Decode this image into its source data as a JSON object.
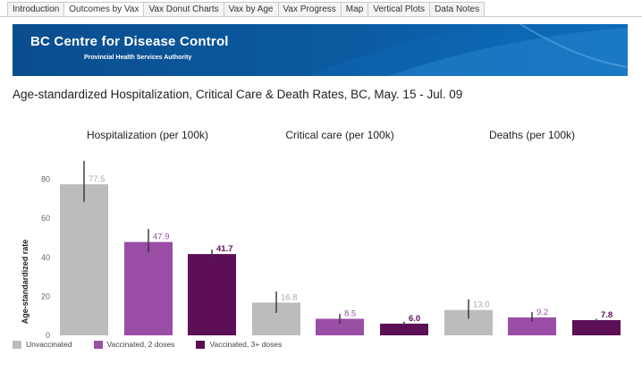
{
  "tabs": [
    {
      "label": "Introduction",
      "active": false
    },
    {
      "label": "Outcomes by Vax",
      "active": true
    },
    {
      "label": "Vax Donut Charts",
      "active": false
    },
    {
      "label": "Vax by Age",
      "active": false
    },
    {
      "label": "Vax Progress",
      "active": false
    },
    {
      "label": "Map",
      "active": false
    },
    {
      "label": "Vertical Plots",
      "active": false
    },
    {
      "label": "Data Notes",
      "active": false
    }
  ],
  "banner": {
    "title": "BC Centre for Disease Control",
    "subtitle": "Provincial Health Services Authority"
  },
  "headline": "Age-standardized Hospitalization, Critical Care  & Death Rates, BC, May. 15 - Jul. 09",
  "colors": {
    "unvaccinated": "#bcbcbc",
    "two_doses": "#9a4ea6",
    "three_doses": "#5c0f57",
    "label_unvaccinated": "#aaaaaa",
    "label_two_doses": "#9a4ea6",
    "label_three_doses": "#5c0f57",
    "banner": "#0b5aa0"
  },
  "chart_data": {
    "type": "bar",
    "ylabel": "Age-standardized rate",
    "ylim": [
      0,
      90
    ],
    "yticks": [
      0,
      20,
      40,
      60,
      80
    ],
    "panels": [
      {
        "title": "Hospitalization (per 100k)",
        "bars": [
          {
            "series": "Unvaccinated",
            "value": 77.5,
            "label": "77.5",
            "err_low": 68.5,
            "err_high": 89.5
          },
          {
            "series": "Vaccinated, 2 doses",
            "value": 47.9,
            "label": "47.9",
            "err_low": 42.5,
            "err_high": 54.5
          },
          {
            "series": "Vaccinated, 3+ doses",
            "value": 41.7,
            "label": "41.7",
            "err_low": 39.5,
            "err_high": 44.0
          }
        ]
      },
      {
        "title": "Critical care (per 100k)",
        "bars": [
          {
            "series": "Unvaccinated",
            "value": 16.8,
            "label": "16.8",
            "err_low": 11.5,
            "err_high": 22.5
          },
          {
            "series": "Vaccinated, 2 doses",
            "value": 8.5,
            "label": "8.5",
            "err_low": 6.0,
            "err_high": 11.0
          },
          {
            "series": "Vaccinated, 3+ doses",
            "value": 6.0,
            "label": "6.0",
            "err_low": 5.0,
            "err_high": 7.0
          }
        ]
      },
      {
        "title": "Deaths (per 100k)",
        "bars": [
          {
            "series": "Unvaccinated",
            "value": 13.0,
            "label": "13.0",
            "err_low": 8.5,
            "err_high": 18.5
          },
          {
            "series": "Vaccinated, 2 doses",
            "value": 9.2,
            "label": "9.2",
            "err_low": 7.0,
            "err_high": 12.0
          },
          {
            "series": "Vaccinated, 3+ doses",
            "value": 7.8,
            "label": "7.8",
            "err_low": 6.5,
            "err_high": 8.5
          }
        ]
      }
    ],
    "legend": [
      {
        "label": "Unvaccinated",
        "color_key": "unvaccinated"
      },
      {
        "label": "Vaccinated, 2 doses",
        "color_key": "two_doses"
      },
      {
        "label": "Vaccinated, 3+ doses",
        "color_key": "three_doses"
      }
    ],
    "legend_position": "bottom-left",
    "grid": false
  }
}
